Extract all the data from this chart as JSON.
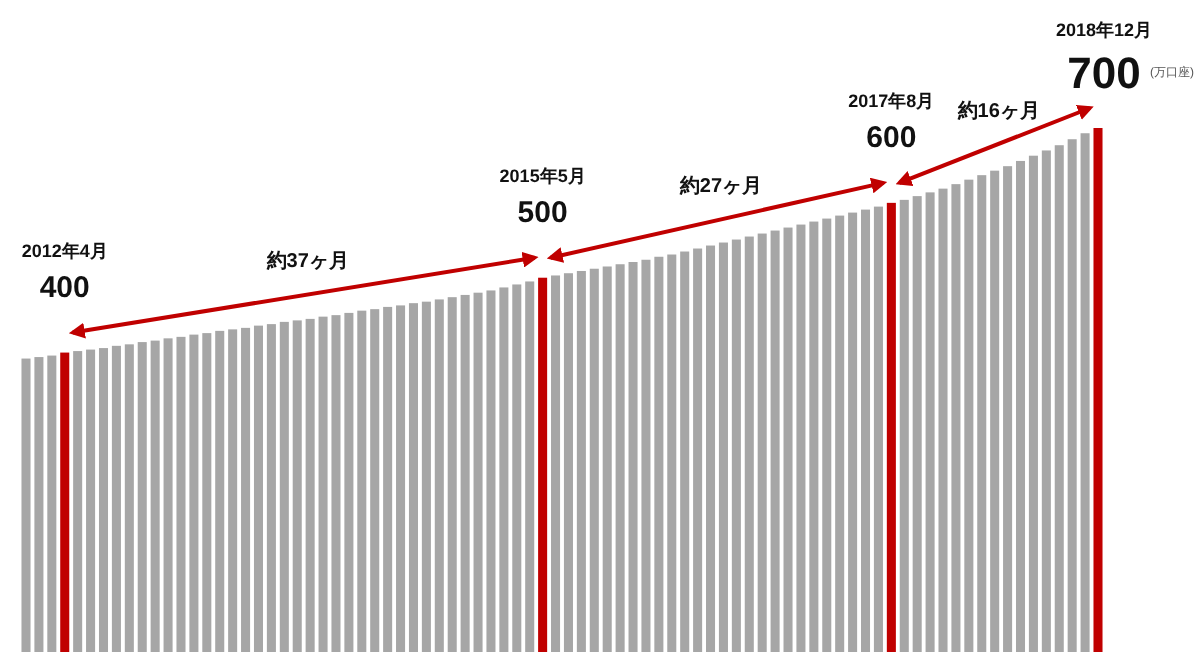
{
  "chart_data": {
    "type": "bar",
    "categories": [
      null,
      null,
      null,
      null,
      null,
      null,
      null,
      null,
      null,
      null,
      null,
      null,
      null,
      null,
      null,
      null,
      null,
      null,
      null,
      null,
      null,
      null,
      null,
      null,
      null,
      null,
      null,
      null,
      null,
      null,
      null,
      null,
      null,
      null,
      null,
      null,
      null,
      null,
      null,
      null,
      null,
      null,
      null,
      null,
      null,
      null,
      null,
      null,
      null,
      null,
      null,
      null,
      null,
      null,
      null,
      null,
      null,
      null,
      null,
      null,
      null,
      null,
      null,
      null,
      null,
      null,
      null,
      null,
      null,
      null,
      null,
      null,
      null,
      null,
      null,
      null,
      null,
      null,
      null,
      null,
      null,
      null,
      null,
      null
    ],
    "values": [
      392,
      394,
      396,
      400,
      402,
      404,
      406,
      409,
      411,
      414,
      416,
      419,
      421,
      424,
      426,
      429,
      431,
      433,
      436,
      438,
      441,
      443,
      445,
      448,
      450,
      453,
      456,
      458,
      461,
      463,
      466,
      468,
      471,
      474,
      477,
      480,
      483,
      487,
      491,
      495,
      500,
      503,
      506,
      509,
      512,
      515,
      518,
      521,
      524,
      528,
      531,
      535,
      539,
      543,
      547,
      551,
      555,
      559,
      563,
      567,
      571,
      575,
      579,
      583,
      587,
      591,
      595,
      600,
      604,
      609,
      614,
      619,
      625,
      631,
      637,
      643,
      649,
      656,
      663,
      670,
      677,
      685,
      693,
      700
    ],
    "colors": [
      "#a6a6a6",
      "#a6a6a6",
      "#a6a6a6",
      "#c00000",
      "#a6a6a6",
      "#a6a6a6",
      "#a6a6a6",
      "#a6a6a6",
      "#a6a6a6",
      "#a6a6a6",
      "#a6a6a6",
      "#a6a6a6",
      "#a6a6a6",
      "#a6a6a6",
      "#a6a6a6",
      "#a6a6a6",
      "#a6a6a6",
      "#a6a6a6",
      "#a6a6a6",
      "#a6a6a6",
      "#a6a6a6",
      "#a6a6a6",
      "#a6a6a6",
      "#a6a6a6",
      "#a6a6a6",
      "#a6a6a6",
      "#a6a6a6",
      "#a6a6a6",
      "#a6a6a6",
      "#a6a6a6",
      "#a6a6a6",
      "#a6a6a6",
      "#a6a6a6",
      "#a6a6a6",
      "#a6a6a6",
      "#a6a6a6",
      "#a6a6a6",
      "#a6a6a6",
      "#a6a6a6",
      "#a6a6a6",
      "#c00000",
      "#a6a6a6",
      "#a6a6a6",
      "#a6a6a6",
      "#a6a6a6",
      "#a6a6a6",
      "#a6a6a6",
      "#a6a6a6",
      "#a6a6a6",
      "#a6a6a6",
      "#a6a6a6",
      "#a6a6a6",
      "#a6a6a6",
      "#a6a6a6",
      "#a6a6a6",
      "#a6a6a6",
      "#a6a6a6",
      "#a6a6a6",
      "#a6a6a6",
      "#a6a6a6",
      "#a6a6a6",
      "#a6a6a6",
      "#a6a6a6",
      "#a6a6a6",
      "#a6a6a6",
      "#a6a6a6",
      "#a6a6a6",
      "#c00000",
      "#a6a6a6",
      "#a6a6a6",
      "#a6a6a6",
      "#a6a6a6",
      "#a6a6a6",
      "#a6a6a6",
      "#a6a6a6",
      "#a6a6a6",
      "#a6a6a6",
      "#a6a6a6",
      "#a6a6a6",
      "#a6a6a6",
      "#a6a6a6",
      "#a6a6a6",
      "#a6a6a6",
      "#c00000"
    ],
    "value_labels": [
      null,
      null,
      null,
      "400",
      null,
      null,
      null,
      null,
      null,
      null,
      null,
      null,
      null,
      null,
      null,
      null,
      null,
      null,
      null,
      null,
      null,
      null,
      null,
      null,
      null,
      null,
      null,
      null,
      null,
      null,
      null,
      null,
      null,
      null,
      null,
      null,
      null,
      null,
      null,
      null,
      "500",
      null,
      null,
      null,
      null,
      null,
      null,
      null,
      null,
      null,
      null,
      null,
      null,
      null,
      null,
      null,
      null,
      null,
      null,
      null,
      null,
      null,
      null,
      null,
      null,
      null,
      null,
      "600",
      null,
      null,
      null,
      null,
      null,
      null,
      null,
      null,
      null,
      null,
      null,
      null,
      null,
      null,
      null,
      "700"
    ],
    "annotations": [
      "2012年4月",
      "2015年5月",
      "2017年8月",
      "2018年12月",
      "約37ヶ月",
      "約27ヶ月",
      "約16ヶ月",
      "(万口座)"
    ]
  }
}
